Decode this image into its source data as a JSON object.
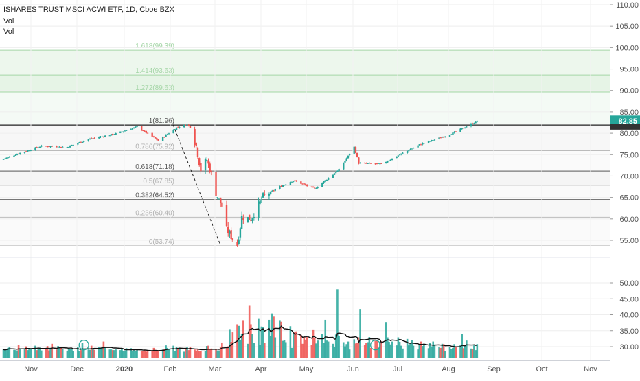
{
  "header": {
    "title": "ISHARES TRUST MSCI ACWI ETF, 1D, Cboe BZX",
    "vol1": "Vol",
    "vol2": "Vol"
  },
  "colors": {
    "up": "#26a69a",
    "down": "#ef5350",
    "price_tag": "#26a69a",
    "grid": "#eeeeee",
    "fib_band": "#eaf7ea"
  },
  "price_tag": "82.85",
  "chart_data": {
    "type": "candlestick",
    "price_axis": {
      "ticks": [
        "110.00",
        "105.00",
        "100.00",
        "95.00",
        "90.00",
        "85.00",
        "80.00",
        "75.00",
        "70.00",
        "65.00",
        "60.00",
        "55.00"
      ],
      "range": [
        52.4,
        111
      ]
    },
    "volume_axis": {
      "ticks": [
        "50.00",
        "45.00",
        "40.00",
        "35.00",
        "30.00"
      ]
    },
    "time_axis": {
      "labels": [
        "Nov",
        "Dec",
        "2020",
        "Feb",
        "Mar",
        "Apr",
        "May",
        "Jun",
        "Jul",
        "Aug",
        "Sep",
        "Oct",
        "Nov"
      ]
    },
    "fib_levels": [
      {
        "ratio": "1.618",
        "price": 99.39,
        "label": "1.618(99.39)"
      },
      {
        "ratio": "1.414",
        "price": 93.63,
        "label": "1.414(93.63)"
      },
      {
        "ratio": "1.272",
        "price": 89.63,
        "label": "1.272(89.63)"
      },
      {
        "ratio": "1",
        "price": 81.96,
        "label": "1(81.96)"
      },
      {
        "ratio": "0.786",
        "price": 75.92,
        "label": "0.786(75.92)"
      },
      {
        "ratio": "0.618",
        "price": 71.18,
        "label": "0.618(71.18)"
      },
      {
        "ratio": "0.5",
        "price": 67.85,
        "label": "0.5(67.85)"
      },
      {
        "ratio": "0.382",
        "price": 64.52,
        "label": "0.382(64.52)"
      },
      {
        "ratio": "0.236",
        "price": 60.4,
        "label": "0.236(60.40)"
      },
      {
        "ratio": "0",
        "price": 53.74,
        "label": "0(53.74)"
      }
    ],
    "series": [
      {
        "name": "price",
        "anchors": [
          [
            "2019-10-21",
            74.0
          ],
          [
            "2019-11-01",
            75.4
          ],
          [
            "2019-11-15",
            77.0
          ],
          [
            "2019-12-02",
            76.8
          ],
          [
            "2019-12-16",
            78.6
          ],
          [
            "2020-01-02",
            79.8
          ],
          [
            "2020-01-17",
            81.5
          ],
          [
            "2020-01-31",
            78.3
          ],
          [
            "2020-02-12",
            81.3
          ],
          [
            "2020-02-19",
            82.0
          ],
          [
            "2020-02-21",
            81.4
          ],
          [
            "2020-02-25",
            77.0
          ],
          [
            "2020-02-28",
            71.5
          ],
          [
            "2020-03-03",
            73.8
          ],
          [
            "2020-03-06",
            70.5
          ],
          [
            "2020-03-09",
            66.0
          ],
          [
            "2020-03-13",
            63.0
          ],
          [
            "2020-03-16",
            57.5
          ],
          [
            "2020-03-18",
            56.4
          ],
          [
            "2020-03-20",
            55.4
          ],
          [
            "2020-03-23",
            53.9
          ],
          [
            "2020-03-26",
            60.5
          ],
          [
            "2020-04-01",
            60.0
          ],
          [
            "2020-04-09",
            65.2
          ],
          [
            "2020-04-20",
            67.5
          ],
          [
            "2020-04-29",
            69.0
          ],
          [
            "2020-05-13",
            67.0
          ],
          [
            "2020-05-29",
            71.5
          ],
          [
            "2020-06-08",
            76.8
          ],
          [
            "2020-06-11",
            73.0
          ],
          [
            "2020-06-26",
            72.8
          ],
          [
            "2020-07-08",
            75.0
          ],
          [
            "2020-07-22",
            77.5
          ],
          [
            "2020-07-31",
            78.5
          ],
          [
            "2020-08-12",
            80.0
          ],
          [
            "2020-08-28",
            82.85
          ]
        ]
      },
      {
        "name": "volume",
        "bars": [
          29.1,
          28.8,
          29.3,
          29.6,
          29.9,
          29.0,
          28.9,
          28.8,
          30.5,
          29.2,
          29.4,
          30.1,
          28.9,
          29.4,
          29.4,
          30.3,
          28.9,
          29.4,
          29.7,
          28.8,
          29.6,
          30.2,
          28.8,
          29.3,
          30.9,
          29.1,
          30.2,
          29.7,
          29.7,
          29.3,
          28.6,
          29.4,
          29.3,
          29.2,
          28.6,
          29.9,
          28.6,
          28.9,
          31.2,
          29.0,
          29.1,
          29.0,
          30.3,
          29.4,
          29.0,
          29.8,
          29.5,
          29.9,
          31.6,
          29.9,
          29.1,
          29.1,
          28.9,
          28.9,
          29.1,
          28.9,
          29.2,
          28.7,
          28.8,
          29.5,
          29.5,
          28.7,
          29.2,
          28.5,
          29.1,
          28.6,
          28.5,
          29.0,
          28.4,
          28.6,
          28.6,
          29.6,
          29.0,
          28.6,
          28.7,
          29.1,
          29.3,
          30.4,
          29.6,
          29.1,
          30.3,
          28.7,
          29.8,
          29.4,
          29.5,
          28.4,
          29.4,
          29.8,
          28.9,
          29.9,
          29.1,
          28.5,
          29.3,
          28.6,
          28.6,
          28.5,
          30.2,
          30.3,
          29.1,
          29.4,
          29.2,
          28.8,
          28.8,
          29.9,
          31.3,
          30.0,
          30.1,
          35.5,
          31.5,
          34.5,
          37.0,
          36.5,
          32.0,
          34.1,
          38.3,
          30.9,
          42.8,
          37.0,
          33.9,
          31.2,
          38.9,
          30.5,
          36.3,
          36.1,
          31.2,
          38.4,
          33.3,
          40.4,
          39.4,
          32.9,
          38.3,
          37.8,
          31.8,
          32.1,
          31.4,
          36.4,
          29.6,
          34.0,
          34.5,
          34.8,
          33.7,
          30.9,
          33.1,
          32.2,
          33.0,
          30.5,
          35.4,
          32.8,
          31.0,
          31.9,
          34.0,
          31.1,
          38.4,
          31.9,
          31.6,
          30.9,
          29.8,
          33.8,
          48.0,
          33.3,
          31.4,
          30.1,
          30.8,
          31.6,
          29.1,
          32.3,
          31.0,
          31.1,
          32.9,
          41.8,
          30.5,
          31.1,
          31.4,
          33.0,
          29.6,
          31.8,
          31.9,
          29.7,
          31.4,
          31.7,
          37.7,
          32.9,
          31.5,
          30.7,
          31.6,
          30.4,
          32.9,
          31.5,
          30.3,
          29.4,
          32.4,
          30.4,
          30.9,
          32.1,
          30.3,
          29.1,
          30.6,
          31.6,
          30.2,
          30.5,
          29.5,
          31.1,
          30.1,
          31.6,
          30.7,
          30.0,
          29.6,
          30.9,
          30.8,
          28.6,
          30.0,
          29.3,
          29.6,
          30.8,
          29.9,
          30.5,
          34.0,
          29.5,
          30.3,
          31.9,
          29.4,
          29.3,
          30.4,
          28.9,
          30.8,
          29.7,
          31.4,
          29.6,
          30.0,
          30.1,
          28.8,
          29.6,
          30.2,
          29.2,
          30.5,
          31.9,
          30.3,
          29.3,
          29.6,
          29.4,
          30.2,
          28.6,
          32.5,
          30.3,
          32.2,
          30.2,
          29.3,
          30.8,
          35.2,
          29.0,
          31.9,
          31.6,
          30.1
        ]
      }
    ],
    "markers": [
      {
        "type": "circle",
        "date": "2019-12-13",
        "volume": 30.5
      },
      {
        "type": "circle",
        "date": "2020-06-22",
        "volume": 30.5
      }
    ]
  }
}
